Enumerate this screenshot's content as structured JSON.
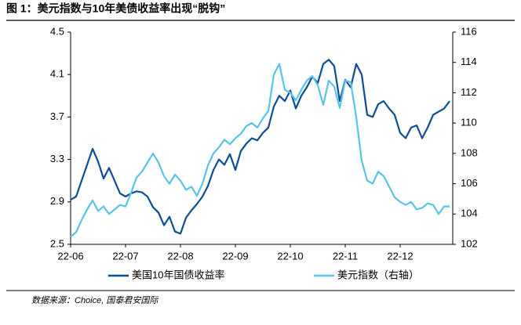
{
  "chart_data": {
    "type": "line",
    "title": "图 1：美元指数与10年美债收益率出现“脱钩”",
    "source": "数据来源：Choice, 国泰君安国际",
    "categories": [
      "22-06",
      null,
      null,
      null,
      null,
      null,
      null,
      null,
      null,
      null,
      "22-07",
      null,
      null,
      null,
      null,
      null,
      null,
      null,
      null,
      null,
      "22-08",
      null,
      null,
      null,
      null,
      null,
      null,
      null,
      null,
      null,
      "22-09",
      null,
      null,
      null,
      null,
      null,
      null,
      null,
      null,
      null,
      "22-10",
      null,
      null,
      null,
      null,
      null,
      null,
      null,
      null,
      null,
      "22-11",
      null,
      null,
      null,
      null,
      null,
      null,
      null,
      null,
      null,
      "22-12",
      null,
      null,
      null,
      null,
      null,
      null,
      null,
      null,
      null
    ],
    "series": [
      {
        "name": "美国10年国债收益率",
        "color": "#0e4d92",
        "axis": "y",
        "values": [
          2.92,
          2.95,
          3.1,
          3.25,
          3.4,
          3.28,
          3.12,
          3.22,
          3.1,
          2.98,
          2.95,
          2.98,
          3.0,
          2.99,
          2.95,
          2.85,
          2.8,
          2.68,
          2.76,
          2.62,
          2.6,
          2.75,
          2.82,
          2.88,
          2.95,
          3.05,
          3.2,
          3.3,
          3.25,
          3.35,
          3.2,
          3.38,
          3.45,
          3.5,
          3.48,
          3.55,
          3.6,
          3.8,
          3.9,
          3.85,
          3.95,
          3.78,
          3.9,
          3.98,
          4.08,
          4.02,
          4.2,
          4.24,
          4.18,
          3.85,
          4.05,
          3.98,
          4.2,
          4.1,
          3.72,
          3.7,
          3.82,
          3.85,
          3.78,
          3.72,
          3.55,
          3.5,
          3.6,
          3.62,
          3.5,
          3.6,
          3.72,
          3.75,
          3.78,
          3.85
        ]
      },
      {
        "name": "美元指数（右轴）",
        "color": "#5bc2ea",
        "axis": "y2",
        "values": [
          102.5,
          102.8,
          103.6,
          104.3,
          104.9,
          104.2,
          104.5,
          104.0,
          104.3,
          104.6,
          104.5,
          105.4,
          106.4,
          106.8,
          107.4,
          108.0,
          107.4,
          106.5,
          106.0,
          106.6,
          106.2,
          105.6,
          105.8,
          105.2,
          106.0,
          107.2,
          108.0,
          108.4,
          108.9,
          108.6,
          109.0,
          109.3,
          109.8,
          110.0,
          109.7,
          110.3,
          110.8,
          113.2,
          113.9,
          112.2,
          112.0,
          111.5,
          112.2,
          112.8,
          113.1,
          112.5,
          111.2,
          112.8,
          112.4,
          111.0,
          112.8,
          112.7,
          110.4,
          107.5,
          106.2,
          106.0,
          106.8,
          106.5,
          105.8,
          105.1,
          104.8,
          104.6,
          104.8,
          104.3,
          104.4,
          104.7,
          104.6,
          104.0,
          104.5,
          104.5
        ]
      }
    ],
    "ylim": [
      2.5,
      4.5
    ],
    "yticks": [
      2.5,
      2.9,
      3.3,
      3.7,
      4.1,
      4.5
    ],
    "y2lim": [
      102,
      116
    ],
    "y2ticks": [
      102,
      104,
      106,
      108,
      110,
      112,
      114,
      116
    ]
  }
}
